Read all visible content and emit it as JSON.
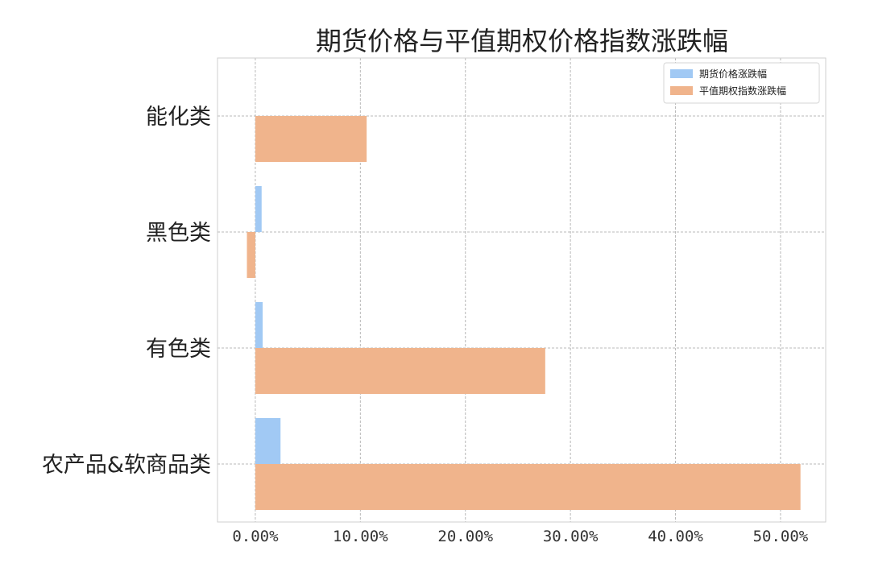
{
  "chart_data": {
    "type": "bar",
    "orientation": "horizontal",
    "title": "期货价格与平值期权价格指数涨跌幅",
    "xlabel": "",
    "ylabel": "",
    "categories": [
      "能化类",
      "黑色类",
      "有色类",
      "农产品&软商品类"
    ],
    "series": [
      {
        "name": "期货价格涨跌幅",
        "color": "#a1c9f4",
        "values": [
          0.0,
          0.6,
          0.7,
          2.4
        ]
      },
      {
        "name": "平值期权指数涨跌幅",
        "color": "#f0b48c",
        "values": [
          10.6,
          -0.8,
          27.6,
          51.9
        ]
      }
    ],
    "xlim": [
      -3.6,
      54.3
    ],
    "xticks": [
      0,
      10,
      20,
      30,
      40,
      50
    ],
    "xtick_labels": [
      "0.00%",
      "10.00%",
      "20.00%",
      "30.00%",
      "40.00%",
      "50.00%"
    ],
    "value_unit": "%",
    "grid": true,
    "legend_position": "top-right"
  }
}
